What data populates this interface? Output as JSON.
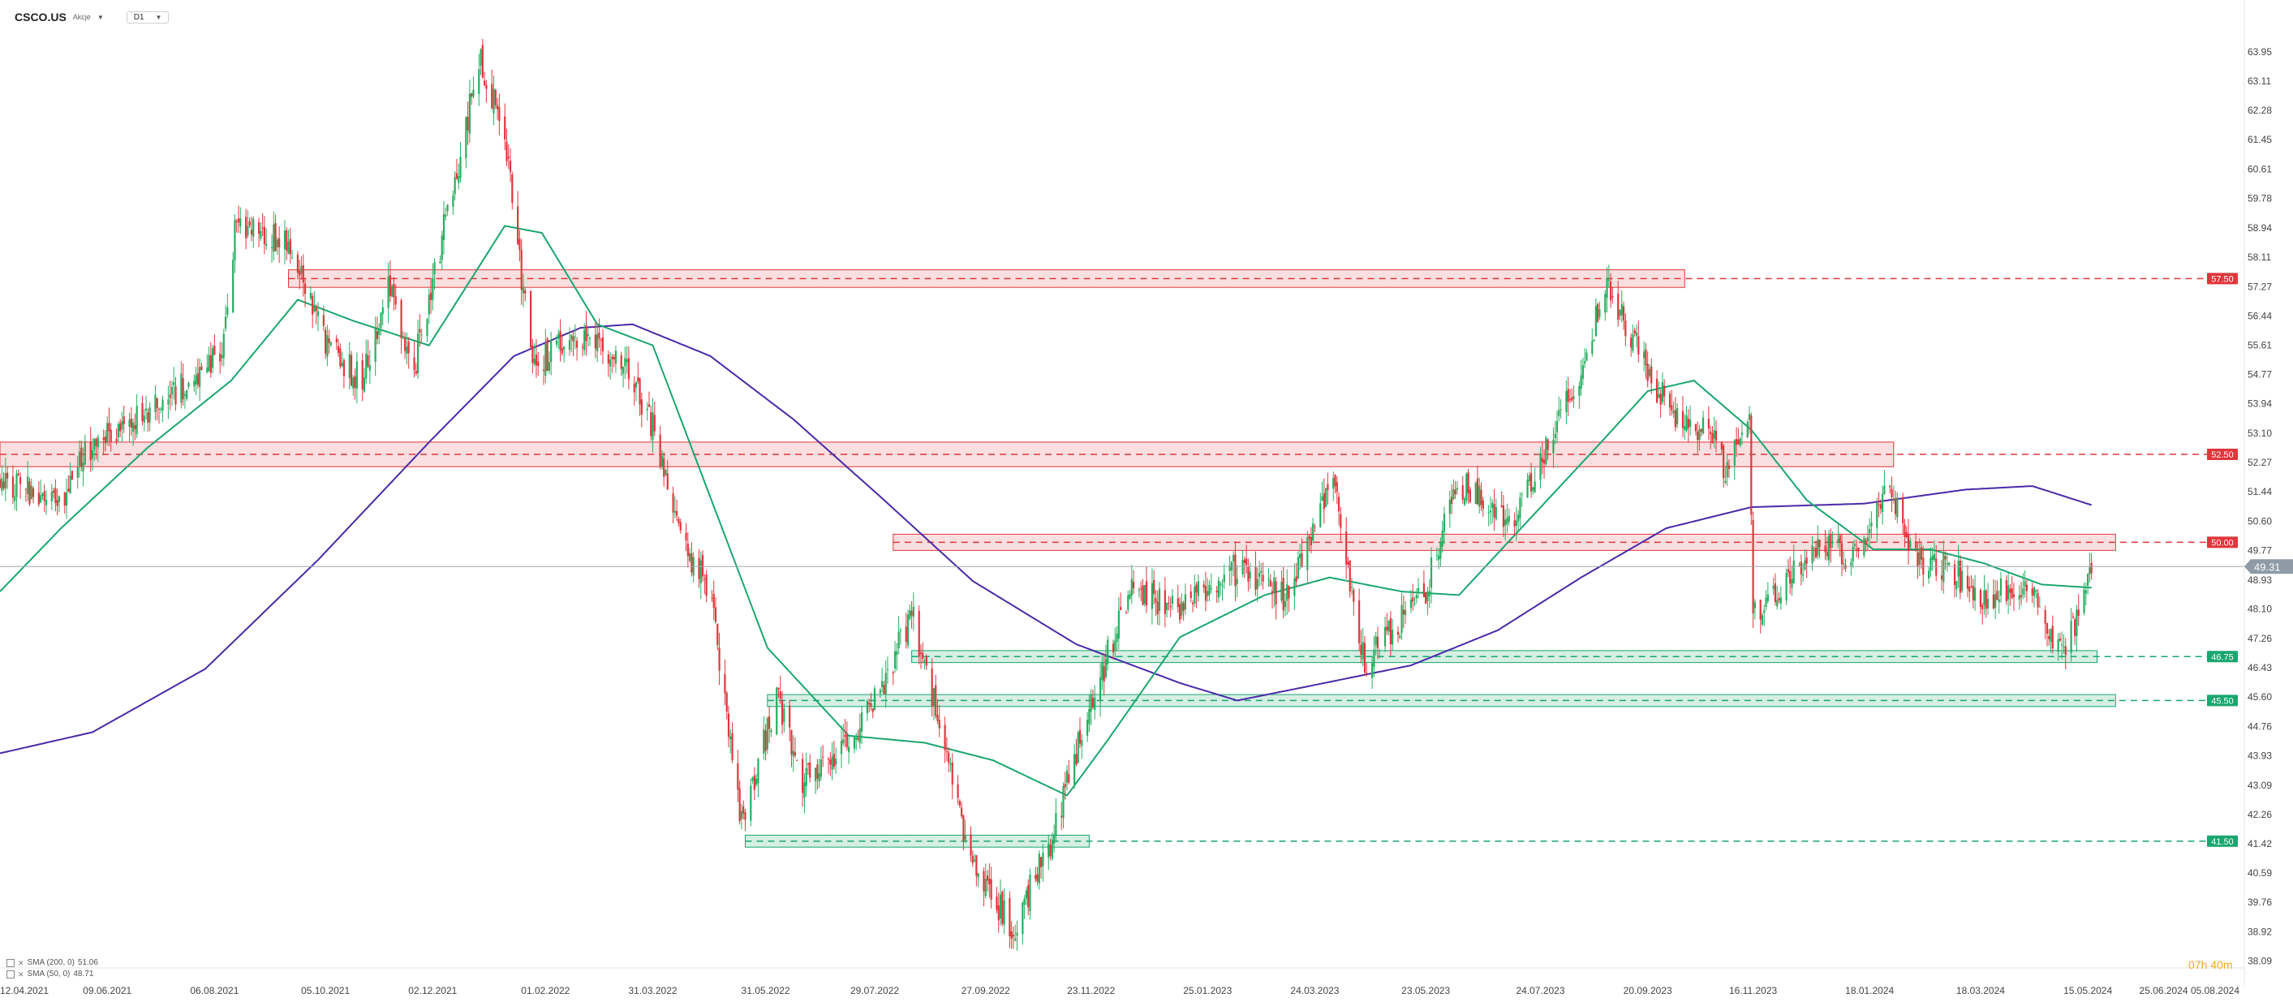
{
  "toolbar": {
    "symbol": "CSCO.US",
    "asset_type": "Akcje",
    "timeframe": "D1",
    "dropdown_icon": "caret-down-icon"
  },
  "indicators": [
    {
      "label": "SMA (200, 0)",
      "value": "51.06",
      "color": "#4a2aa8"
    },
    {
      "label": "SMA (50, 0)",
      "value": "48.71",
      "color": "#1aa66f"
    }
  ],
  "timer": "07h 40m",
  "colors": {
    "bull": "#27ae60",
    "bear": "#e0363c",
    "resistance": "#e0363c",
    "support": "#1aa66f",
    "price_tag": "#8e9aa5"
  },
  "chart_data": {
    "type": "candlestick",
    "instrument": "CSCO.US",
    "timeframe": "D1",
    "ylim": [
      38.08,
      64.5
    ],
    "y_ticks": [
      "63.95",
      "63.11",
      "62.28",
      "61.45",
      "60.61",
      "59.78",
      "58.94",
      "58.11",
      "57.27",
      "56.44",
      "55.61",
      "54.77",
      "53.94",
      "53.10",
      "52.27",
      "51.44",
      "50.60",
      "49.77",
      "48.93",
      "48.10",
      "47.26",
      "46.43",
      "45.60",
      "44.76",
      "43.93",
      "43.09",
      "42.26",
      "41.42",
      "40.59",
      "39.76",
      "38.92",
      "38.09"
    ],
    "x_range": [
      "2021-04-12",
      "2024-08-05"
    ],
    "x_ticks": [
      "12.04.2021",
      "09.06.2021",
      "06.08.2021",
      "05.10.2021",
      "02.12.2021",
      "01.02.2022",
      "31.03.2022",
      "31.05.2022",
      "29.07.2022",
      "27.09.2022",
      "23.11.2022",
      "25.01.2023",
      "24.03.2023",
      "23.05.2023",
      "24.07.2023",
      "20.09.2023",
      "16.11.2023",
      "18.01.2024",
      "18.03.2024",
      "15.05.2024",
      "25.06.2024",
      "05.08.2024"
    ],
    "price_path": [
      [
        "2021-04-12",
        51.9
      ],
      [
        "2021-05-12",
        51.0
      ],
      [
        "2021-06-01",
        52.8
      ],
      [
        "2021-07-01",
        53.6
      ],
      [
        "2021-08-10",
        55.5
      ],
      [
        "2021-08-18",
        59.2
      ],
      [
        "2021-09-15",
        58.5
      ],
      [
        "2021-10-05",
        55.6
      ],
      [
        "2021-10-25",
        54.6
      ],
      [
        "2021-11-08",
        57.4
      ],
      [
        "2021-11-22",
        55.0
      ],
      [
        "2021-12-28",
        63.8
      ],
      [
        "2022-01-10",
        61.4
      ],
      [
        "2022-01-25",
        55.0
      ],
      [
        "2022-02-20",
        56.0
      ],
      [
        "2022-03-15",
        55.2
      ],
      [
        "2022-03-31",
        53.3
      ],
      [
        "2022-04-20",
        49.6
      ],
      [
        "2022-05-01",
        48.6
      ],
      [
        "2022-05-18",
        42.0
      ],
      [
        "2022-06-06",
        45.6
      ],
      [
        "2022-06-20",
        43.2
      ],
      [
        "2022-07-15",
        44.3
      ],
      [
        "2022-08-05",
        46.2
      ],
      [
        "2022-08-18",
        48.0
      ],
      [
        "2022-09-01",
        45.0
      ],
      [
        "2022-09-20",
        40.8
      ],
      [
        "2022-10-12",
        39.0
      ],
      [
        "2022-11-01",
        41.5
      ],
      [
        "2022-11-20",
        44.9
      ],
      [
        "2022-12-14",
        48.7
      ],
      [
        "2023-01-10",
        48.0
      ],
      [
        "2023-02-05",
        49.3
      ],
      [
        "2023-03-10",
        48.4
      ],
      [
        "2023-04-02",
        51.9
      ],
      [
        "2023-04-20",
        46.5
      ],
      [
        "2023-05-23",
        48.7
      ],
      [
        "2023-06-10",
        51.7
      ],
      [
        "2023-07-10",
        50.6
      ],
      [
        "2023-08-15",
        55.0
      ],
      [
        "2023-08-30",
        57.4
      ],
      [
        "2023-09-20",
        54.8
      ],
      [
        "2023-10-05",
        53.6
      ],
      [
        "2023-10-25",
        53.2
      ],
      [
        "2023-11-01",
        52.0
      ],
      [
        "2023-11-14",
        53.3
      ],
      [
        "2023-11-16",
        47.9
      ],
      [
        "2023-12-20",
        49.9
      ],
      [
        "2024-01-10",
        49.6
      ],
      [
        "2024-01-28",
        51.8
      ],
      [
        "2024-02-14",
        49.3
      ],
      [
        "2024-03-01",
        49.4
      ],
      [
        "2024-03-18",
        48.2
      ],
      [
        "2024-04-10",
        48.9
      ],
      [
        "2024-04-25",
        47.4
      ],
      [
        "2024-05-02",
        46.7
      ],
      [
        "2024-05-15",
        48.9
      ],
      [
        "2024-05-17",
        49.3
      ]
    ],
    "sma_200": [
      [
        "2021-04-12",
        44.0
      ],
      [
        "2021-06-01",
        44.6
      ],
      [
        "2021-08-01",
        46.4
      ],
      [
        "2021-10-01",
        49.5
      ],
      [
        "2021-12-01",
        52.9
      ],
      [
        "2022-01-15",
        55.3
      ],
      [
        "2022-02-20",
        56.1
      ],
      [
        "2022-03-20",
        56.2
      ],
      [
        "2022-05-01",
        55.3
      ],
      [
        "2022-06-15",
        53.5
      ],
      [
        "2022-08-01",
        51.3
      ],
      [
        "2022-09-20",
        48.9
      ],
      [
        "2022-11-15",
        47.1
      ],
      [
        "2023-01-10",
        46.0
      ],
      [
        "2023-02-10",
        45.5
      ],
      [
        "2023-03-20",
        45.9
      ],
      [
        "2023-05-15",
        46.5
      ],
      [
        "2023-07-01",
        47.5
      ],
      [
        "2023-08-15",
        49.0
      ],
      [
        "2023-09-30",
        50.4
      ],
      [
        "2023-11-15",
        51.0
      ],
      [
        "2024-01-15",
        51.1
      ],
      [
        "2024-03-10",
        51.5
      ],
      [
        "2024-04-15",
        51.6
      ],
      [
        "2024-05-17",
        51.06
      ]
    ],
    "sma_50": [
      [
        "2021-04-12",
        48.6
      ],
      [
        "2021-05-15",
        50.4
      ],
      [
        "2021-07-01",
        52.7
      ],
      [
        "2021-08-15",
        54.6
      ],
      [
        "2021-09-20",
        56.9
      ],
      [
        "2021-10-20",
        56.3
      ],
      [
        "2021-11-30",
        55.6
      ],
      [
        "2022-01-10",
        59.0
      ],
      [
        "2022-01-30",
        58.8
      ],
      [
        "2022-03-01",
        56.2
      ],
      [
        "2022-03-31",
        55.6
      ],
      [
        "2022-05-01",
        51.3
      ],
      [
        "2022-06-01",
        47.0
      ],
      [
        "2022-07-15",
        44.5
      ],
      [
        "2022-08-25",
        44.3
      ],
      [
        "2022-10-01",
        43.8
      ],
      [
        "2022-11-10",
        42.8
      ],
      [
        "2022-12-01",
        44.3
      ],
      [
        "2023-01-10",
        47.3
      ],
      [
        "2023-02-25",
        48.5
      ],
      [
        "2023-04-01",
        49.0
      ],
      [
        "2023-05-10",
        48.6
      ],
      [
        "2023-06-10",
        48.5
      ],
      [
        "2023-07-10",
        50.2
      ],
      [
        "2023-08-25",
        52.8
      ],
      [
        "2023-09-20",
        54.3
      ],
      [
        "2023-10-15",
        54.6
      ],
      [
        "2023-11-15",
        53.2
      ],
      [
        "2023-12-15",
        51.2
      ],
      [
        "2024-01-20",
        49.8
      ],
      [
        "2024-02-20",
        49.8
      ],
      [
        "2024-03-20",
        49.4
      ],
      [
        "2024-04-20",
        48.8
      ],
      [
        "2024-05-17",
        48.71
      ]
    ],
    "horizontal_zones": [
      {
        "level": 57.5,
        "label": "57.50",
        "type": "resistance",
        "from": "2021-09-15",
        "to": "2023-10-10",
        "low": 57.25,
        "high": 57.75
      },
      {
        "level": 52.5,
        "label": "52.50",
        "type": "resistance",
        "from": "2021-04-12",
        "to": "2024-01-31",
        "low": 52.15,
        "high": 52.85
      },
      {
        "level": 50.0,
        "label": "50.00",
        "type": "resistance",
        "from": "2022-08-08",
        "to": "2024-05-30",
        "low": 49.77,
        "high": 50.23
      },
      {
        "level": 46.75,
        "label": "46.75",
        "type": "support",
        "from": "2022-08-18",
        "to": "2024-05-20",
        "low": 46.58,
        "high": 46.92
      },
      {
        "level": 45.5,
        "label": "45.50",
        "type": "support",
        "from": "2022-06-01",
        "to": "2024-05-30",
        "low": 45.33,
        "high": 45.67
      },
      {
        "level": 41.5,
        "label": "41.50",
        "type": "support",
        "from": "2022-05-20",
        "to": "2022-11-22",
        "low": 41.33,
        "high": 41.67
      }
    ],
    "last_price": {
      "value": 49.31,
      "label": "49.31"
    },
    "grid": false,
    "legend": "bottom-left"
  }
}
